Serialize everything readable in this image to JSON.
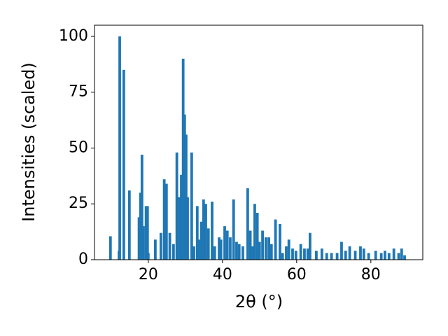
{
  "chart_data": {
    "type": "bar",
    "xlabel": "2θ (°)",
    "ylabel": "Intensities (scaled)",
    "color": "#1f77b4",
    "xlim": [
      5.5,
      94
    ],
    "ylim": [
      0,
      105
    ],
    "xticks": [
      20,
      40,
      60,
      80
    ],
    "yticks": [
      0,
      25,
      50,
      75,
      100
    ],
    "x": [
      9.8,
      12.1,
      12.3,
      13.4,
      14.9,
      17.5,
      17.9,
      18.3,
      18.7,
      19.4,
      19.8,
      20.0,
      21.9,
      23.4,
      24.3,
      24.5,
      24.9,
      25.8,
      26.8,
      27.7,
      28.3,
      28.9,
      29.4,
      29.8,
      30.2,
      30.6,
      31.7,
      32.3,
      33.2,
      33.8,
      34.3,
      34.9,
      35.5,
      36.2,
      37.2,
      37.9,
      39.1,
      39.6,
      40.6,
      41.3,
      42.1,
      43.0,
      43.8,
      44.5,
      45.5,
      46.8,
      47.5,
      48.1,
      48.7,
      49.4,
      50.0,
      50.8,
      51.7,
      52.5,
      53.2,
      54.3,
      55.5,
      56.2,
      57.2,
      57.9,
      58.9,
      59.8,
      61.1,
      62.1,
      63.0,
      63.6,
      65.3,
      66.8,
      68.1,
      69.4,
      70.9,
      72.1,
      73.2,
      74.3,
      75.8,
      77.2,
      78.1,
      79.4,
      81.3,
      82.8,
      83.8,
      84.9,
      86.2,
      87.5,
      88.3,
      89.1
    ],
    "values": [
      10.5,
      4,
      100,
      85,
      31,
      19,
      30,
      47,
      15,
      24,
      24,
      3,
      9,
      12,
      36,
      17,
      34,
      12,
      7,
      48,
      28,
      38,
      90,
      65,
      56,
      28,
      48,
      6,
      24,
      9,
      17,
      27,
      25,
      14,
      26,
      6,
      10,
      9,
      15,
      13,
      10,
      27,
      8,
      7,
      6,
      32,
      13,
      6,
      25,
      21,
      8,
      13,
      10,
      10,
      7,
      18,
      16,
      3,
      6,
      9,
      5,
      4,
      7,
      5,
      5,
      12,
      4,
      5,
      3,
      3,
      3,
      8,
      4,
      6,
      4,
      6,
      5,
      3,
      4,
      3,
      4,
      3,
      5,
      3,
      5,
      2
    ]
  }
}
